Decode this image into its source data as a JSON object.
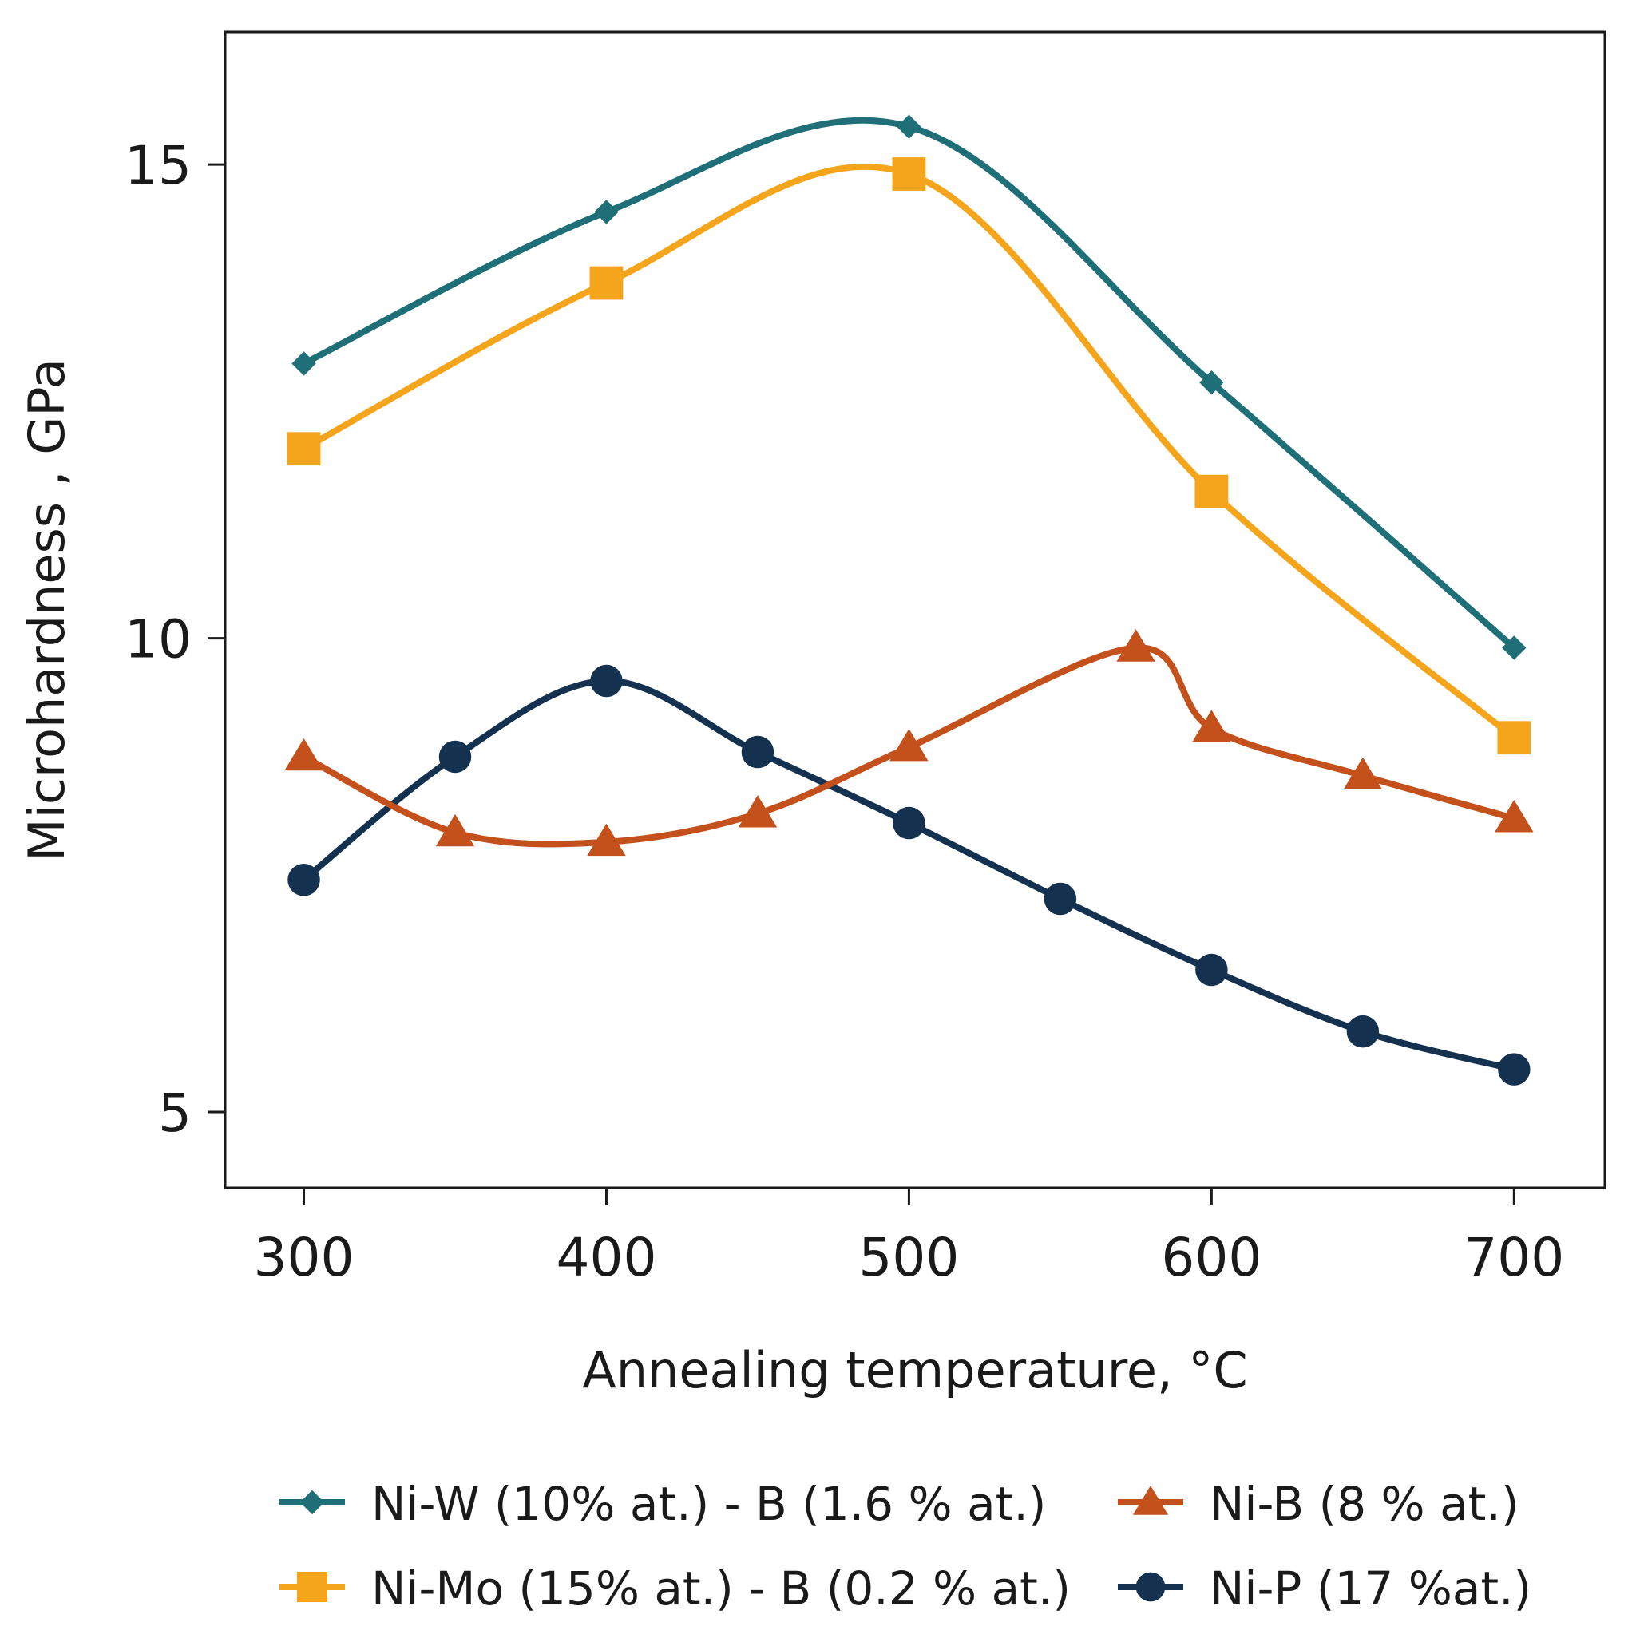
{
  "chart_data": {
    "type": "line",
    "title": "",
    "xlabel": "Annealing temperature, °C",
    "ylabel": "Microhardness , GPa",
    "xlim": [
      274,
      730
    ],
    "ylim": [
      4.2,
      16.4
    ],
    "xticks": [
      300,
      400,
      500,
      600,
      700
    ],
    "yticks": [
      5,
      10,
      15
    ],
    "grid": false,
    "legend_position": "bottom",
    "series": [
      {
        "name": "Ni-W (10% at.) - B (1.6 % at.)",
        "color": "#1f6f78",
        "marker": "diamond",
        "x": [
          300,
          400,
          500,
          600,
          700
        ],
        "y": [
          12.9,
          14.5,
          15.4,
          12.7,
          9.9
        ]
      },
      {
        "name": "Ni-Mo (15% at.) - B (0.2 % at.)",
        "color": "#f5a51c",
        "marker": "square",
        "x": [
          300,
          400,
          500,
          600,
          700
        ],
        "y": [
          12.0,
          13.75,
          14.9,
          11.55,
          8.95
        ]
      },
      {
        "name": "Ni-B  (8 % at.)",
        "color": "#c4501b",
        "marker": "triangle",
        "x": [
          300,
          350,
          400,
          450,
          500,
          575,
          600,
          650,
          700
        ],
        "y": [
          8.75,
          7.95,
          7.85,
          8.15,
          8.85,
          9.9,
          9.05,
          8.55,
          8.1
        ]
      },
      {
        "name": "Ni-P (17 %at.)",
        "color": "#14324f",
        "marker": "circle",
        "x": [
          300,
          350,
          400,
          450,
          500,
          550,
          600,
          650,
          700
        ],
        "y": [
          7.45,
          8.75,
          9.55,
          8.8,
          8.05,
          7.25,
          6.5,
          5.85,
          5.45
        ]
      }
    ]
  }
}
